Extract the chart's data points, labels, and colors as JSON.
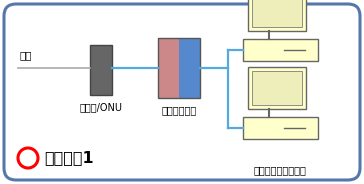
{
  "bg_color": "#ffffff",
  "border_color": "#5577aa",
  "border_lw": 2.2,
  "line_color": "#55aadd",
  "line_lw": 1.6,
  "modem_color": "#666666",
  "modem_border": "#444444",
  "router_left_color": "#cc8888",
  "router_right_color": "#5588cc",
  "router_border": "#555555",
  "pc_color": "#ffffcc",
  "pc_border": "#666666",
  "pc_screen_color": "#eeeebb",
  "label_modem": "モデム/ONU",
  "label_router": "有線ルーター",
  "label_kaisen": "回線",
  "label_pc": "またはゲーム機など",
  "pattern_circle_color": "#ff0000",
  "pattern_text": "パターン1",
  "font_size_label": 7.0,
  "font_size_pattern": 11.5,
  "font_size_kaisen": 7.5
}
